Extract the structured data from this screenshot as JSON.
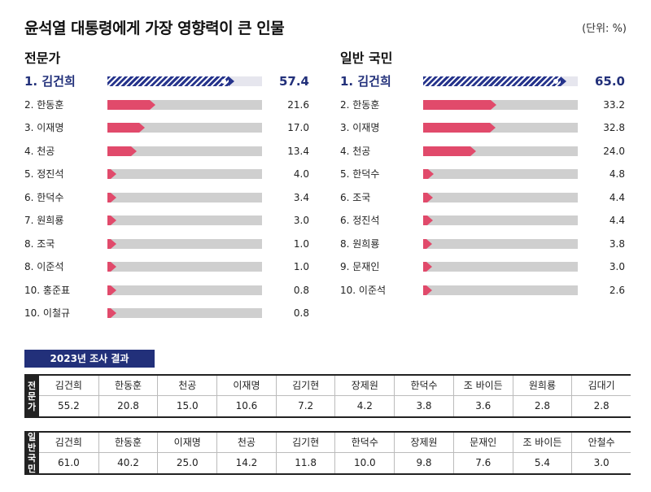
{
  "title": "윤석열 대통령에게 가장 영향력이 큰 인물",
  "unit": "(단위: %)",
  "chart_data": [
    {
      "type": "bar",
      "title": "전문가",
      "categories": [
        "1. 김건희",
        "2. 한동훈",
        "3. 이재명",
        "4. 천공",
        "5. 정진석",
        "6. 한덕수",
        "7. 원희룡",
        "8. 조국",
        "8. 이준석",
        "10. 홍준표",
        "10. 이철규"
      ],
      "values": [
        57.4,
        21.6,
        17.0,
        13.4,
        4.0,
        3.4,
        3.0,
        1.0,
        1.0,
        0.8,
        0.8
      ],
      "value_labels": [
        "57.4",
        "21.6",
        "17.0",
        "13.4",
        "4.0",
        "3.4",
        "3.0",
        "1.0",
        "1.0",
        "0.8",
        "0.8"
      ],
      "ylim": [
        0,
        70
      ]
    },
    {
      "type": "bar",
      "title": "일반 국민",
      "categories": [
        "1. 김건희",
        "2. 한동훈",
        "3. 이재명",
        "4. 천공",
        "5. 한덕수",
        "6. 조국",
        "6. 정진석",
        "8. 원희룡",
        "9. 문재인",
        "10. 이준석"
      ],
      "values": [
        65.0,
        33.2,
        32.8,
        24.0,
        4.8,
        4.4,
        4.4,
        3.8,
        3.0,
        2.6
      ],
      "value_labels": [
        "65.0",
        "33.2",
        "32.8",
        "24.0",
        "4.8",
        "4.4",
        "4.4",
        "3.8",
        "3.0",
        "2.6"
      ],
      "ylim": [
        0,
        70
      ]
    }
  ],
  "survey_2023": {
    "banner": "2023년 조사 결과",
    "experts": {
      "label": "전문가",
      "names": [
        "김건희",
        "한동훈",
        "천공",
        "이재명",
        "김기현",
        "장제원",
        "한덕수",
        "조 바이든",
        "원희룡",
        "김대기"
      ],
      "values": [
        "55.2",
        "20.8",
        "15.0",
        "10.6",
        "7.2",
        "4.2",
        "3.8",
        "3.6",
        "2.8",
        "2.8"
      ]
    },
    "public": {
      "label": "일반국민",
      "names": [
        "김건희",
        "한동훈",
        "이재명",
        "천공",
        "김기현",
        "한덕수",
        "장제원",
        "문재인",
        "조 바이든",
        "안철수"
      ],
      "values": [
        "61.0",
        "40.2",
        "25.0",
        "14.2",
        "11.8",
        "10.0",
        "9.8",
        "7.6",
        "5.4",
        "3.0"
      ]
    }
  },
  "colors": {
    "highlight": "#26348c",
    "bar": "#e14a6b",
    "track": "#cfcfcf"
  }
}
